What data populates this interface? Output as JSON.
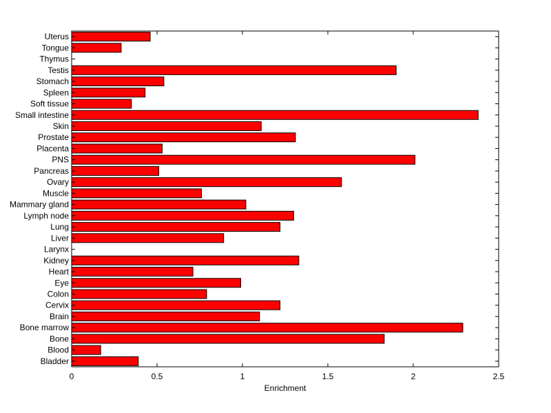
{
  "chart_data": {
    "type": "bar",
    "orientation": "horizontal",
    "title": "",
    "xlabel": "Enrichment",
    "ylabel": "",
    "xlim": [
      0,
      2.5
    ],
    "xticks": [
      "0",
      "0.5",
      "1",
      "1.5",
      "2",
      "2.5"
    ],
    "grid": false,
    "legend": "none",
    "bar_color": "#ff0000",
    "bar_edge_color": "#000000",
    "categories": [
      "Uterus",
      "Tongue",
      "Thymus",
      "Testis",
      "Stomach",
      "Spleen",
      "Soft tissue",
      "Small intestine",
      "Skin",
      "Prostate",
      "Placenta",
      "PNS",
      "Pancreas",
      "Ovary",
      "Muscle",
      "Mammary gland",
      "Lymph node",
      "Lung",
      "Liver",
      "Larynx",
      "Kidney",
      "Heart",
      "Eye",
      "Colon",
      "Cervix",
      "Brain",
      "Bone marrow",
      "Bone",
      "Blood",
      "Bladder"
    ],
    "values": [
      0.46,
      0.29,
      0.0,
      1.9,
      0.54,
      0.43,
      0.35,
      2.38,
      1.11,
      1.31,
      0.53,
      2.01,
      0.51,
      1.58,
      0.76,
      1.02,
      1.3,
      1.22,
      0.89,
      0.0,
      1.33,
      0.71,
      0.99,
      0.79,
      1.22,
      1.1,
      2.29,
      1.83,
      0.17,
      0.39
    ]
  }
}
